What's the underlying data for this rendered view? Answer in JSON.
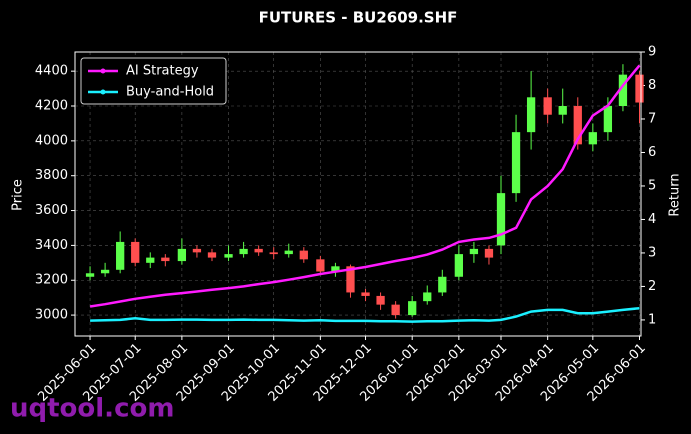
{
  "chart_data": {
    "type": "candlestick",
    "title": "FUTURES - BU2609.SHF",
    "y_label": "Price",
    "y2_label": "Return",
    "watermark": "uqtool.com",
    "up_color": "#5cff4a",
    "down_color": "#ff4f4f",
    "grid": true,
    "legend": "upper left",
    "x": [
      "2025-06-01",
      "2025-06-11",
      "2025-06-21",
      "2025-07-01",
      "2025-07-11",
      "2025-07-21",
      "2025-08-01",
      "2025-08-11",
      "2025-08-21",
      "2025-09-01",
      "2025-09-11",
      "2025-09-21",
      "2025-10-01",
      "2025-10-11",
      "2025-10-21",
      "2025-11-01",
      "2025-11-11",
      "2025-11-21",
      "2025-12-01",
      "2025-12-11",
      "2025-12-21",
      "2026-01-01",
      "2026-01-11",
      "2026-01-21",
      "2026-02-01",
      "2026-02-11",
      "2026-02-21",
      "2026-03-01",
      "2026-03-11",
      "2026-03-21",
      "2026-04-01",
      "2026-04-11",
      "2026-04-21",
      "2026-05-01",
      "2026-05-11",
      "2026-05-21",
      "2026-06-01"
    ],
    "open": [
      3220,
      3240,
      3260,
      3420,
      3300,
      3330,
      3310,
      3380,
      3360,
      3330,
      3350,
      3380,
      3360,
      3350,
      3370,
      3320,
      3250,
      3280,
      3130,
      3110,
      3060,
      3000,
      3080,
      3130,
      3220,
      3350,
      3380,
      3400,
      3700,
      4050,
      4250,
      4150,
      4200,
      3980,
      4050,
      4200,
      4380
    ],
    "high": [
      3280,
      3300,
      3480,
      3440,
      3360,
      3350,
      3440,
      3400,
      3380,
      3400,
      3420,
      3400,
      3390,
      3410,
      3390,
      3340,
      3300,
      3290,
      3150,
      3130,
      3080,
      3110,
      3170,
      3260,
      3400,
      3420,
      3400,
      3800,
      4150,
      4400,
      4300,
      4300,
      4250,
      4100,
      4250,
      4440,
      4400
    ],
    "low": [
      3200,
      3220,
      3240,
      3280,
      3270,
      3280,
      3290,
      3330,
      3310,
      3310,
      3330,
      3340,
      3320,
      3330,
      3300,
      3230,
      3220,
      3100,
      3080,
      3030,
      2980,
      2990,
      3060,
      3110,
      3200,
      3300,
      3290,
      3350,
      3650,
      3950,
      4100,
      4100,
      3950,
      3940,
      4000,
      4170,
      4100
    ],
    "close": [
      3240,
      3260,
      3420,
      3300,
      3330,
      3310,
      3380,
      3360,
      3330,
      3350,
      3380,
      3360,
      3350,
      3370,
      3320,
      3250,
      3280,
      3130,
      3110,
      3060,
      3000,
      3080,
      3130,
      3220,
      3350,
      3380,
      3330,
      3700,
      4050,
      4250,
      4150,
      4200,
      3980,
      4050,
      4200,
      4380,
      4220
    ],
    "series": [
      {
        "name": "AI Strategy",
        "color": "#ff1aff",
        "axis": "y2",
        "values": [
          1.4,
          1.47,
          1.55,
          1.63,
          1.69,
          1.75,
          1.8,
          1.85,
          1.9,
          1.95,
          2.0,
          2.07,
          2.13,
          2.2,
          2.28,
          2.37,
          2.44,
          2.51,
          2.58,
          2.67,
          2.76,
          2.85,
          2.95,
          3.1,
          3.33,
          3.4,
          3.45,
          3.55,
          3.75,
          4.6,
          5.0,
          5.5,
          6.4,
          7.1,
          7.4,
          8.0,
          8.6
        ]
      },
      {
        "name": "Buy-and-Hold",
        "color": "#1af0ff",
        "axis": "y2",
        "values": [
          0.98,
          0.99,
          1.0,
          1.05,
          1.0,
          1.0,
          1.01,
          1.01,
          1.0,
          1.0,
          1.01,
          1.0,
          1.0,
          0.99,
          0.98,
          0.99,
          0.97,
          0.97,
          0.97,
          0.96,
          0.96,
          0.95,
          0.96,
          0.96,
          0.98,
          0.99,
          0.98,
          1.0,
          1.1,
          1.25,
          1.3,
          1.3,
          1.2,
          1.2,
          1.25,
          1.3,
          1.35
        ]
      }
    ],
    "xlim": [
      "2025-05-22",
      "2026-06-02"
    ],
    "xticks": [
      "2025-06-01",
      "2025-07-01",
      "2025-08-01",
      "2025-09-01",
      "2025-10-01",
      "2025-11-01",
      "2025-12-01",
      "2026-01-01",
      "2026-02-01",
      "2026-03-01",
      "2026-04-01",
      "2026-05-01",
      "2026-06-01"
    ],
    "ylim": [
      2880,
      4510
    ],
    "yticks": [
      3000,
      3200,
      3400,
      3600,
      3800,
      4000,
      4200,
      4400
    ],
    "y2lim": [
      0.52,
      9
    ],
    "y2ticks": [
      1,
      2,
      3,
      4,
      5,
      6,
      7,
      8,
      9
    ]
  }
}
